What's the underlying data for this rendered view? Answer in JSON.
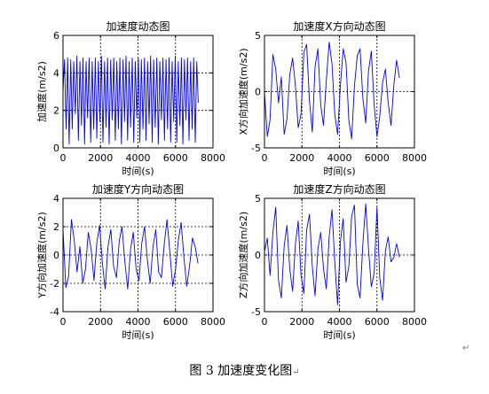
{
  "caption": "图 3  加速度变化图",
  "caption_mark": "↵",
  "paragraph_mark": "↵",
  "colors": {
    "line": "#0000ff",
    "axes": "#000000",
    "grid": "#000000",
    "background": "#ffffff"
  },
  "chart_data": [
    {
      "type": "line",
      "title": "加速度动态图",
      "xlabel": "时间(s)",
      "ylabel": "加速度(m/s2)",
      "xlim": [
        0,
        8000
      ],
      "ylim": [
        0,
        6
      ],
      "xticks": [
        0,
        2000,
        4000,
        6000,
        8000
      ],
      "yticks": [
        0,
        2,
        4,
        6
      ],
      "grid": true,
      "series": [
        {
          "x": [
            0,
            82,
            164,
            246,
            328,
            410,
            492,
            574,
            656,
            738,
            820,
            902,
            984,
            1066,
            1148,
            1230,
            1312,
            1394,
            1476,
            1558,
            1640,
            1722,
            1804,
            1886,
            1968,
            2050,
            2132,
            2214,
            2296,
            2378,
            2460,
            2542,
            2624,
            2706,
            2788,
            2870,
            2952,
            3034,
            3116,
            3198,
            3280,
            3362,
            3444,
            3526,
            3608,
            3690,
            3772,
            3854,
            3936,
            4018,
            4100,
            4182,
            4264,
            4346,
            4428,
            4510,
            4592,
            4674,
            4756,
            4838,
            4920,
            5002,
            5084,
            5166,
            5248,
            5330,
            5412,
            5494,
            5576,
            5658,
            5740,
            5822,
            5904,
            5986,
            6068,
            6150,
            6232,
            6314,
            6396,
            6478,
            6560,
            6642,
            6724,
            6806,
            6888,
            6970,
            7052,
            7134,
            7216
          ],
          "y": [
            3.0,
            4.7,
            1.0,
            4.8,
            0.2,
            4.7,
            1.0,
            4.6,
            1.8,
            4.9,
            0.4,
            4.6,
            1.2,
            4.8,
            0.2,
            4.6,
            1.6,
            4.8,
            0.3,
            4.6,
            1.0,
            4.8,
            0.5,
            4.6,
            1.4,
            4.9,
            0.3,
            4.6,
            1.1,
            4.8,
            0.2,
            4.7,
            1.5,
            4.8,
            0.4,
            4.6,
            1.0,
            4.8,
            0.2,
            4.7,
            1.4,
            4.9,
            0.4,
            4.6,
            1.1,
            4.8,
            0.3,
            4.6,
            1.6,
            4.8,
            0.3,
            4.7,
            1.0,
            4.8,
            0.4,
            4.6,
            1.3,
            4.9,
            0.3,
            4.7,
            1.1,
            4.8,
            0.2,
            4.6,
            1.5,
            4.8,
            0.4,
            4.7,
            1.0,
            4.8,
            0.3,
            4.6,
            1.4,
            4.9,
            0.3,
            4.6,
            1.2,
            4.8,
            0.2,
            4.7,
            1.5,
            4.8,
            0.4,
            4.6,
            1.0,
            4.8,
            0.3,
            4.6,
            2.4
          ]
        }
      ]
    },
    {
      "type": "line",
      "title": "加速度X方向动态图",
      "xlabel": "时间(s)",
      "ylabel": "X方向加速度(m/s2)",
      "xlim": [
        0,
        8000
      ],
      "ylim": [
        -5,
        5
      ],
      "xticks": [
        0,
        2000,
        4000,
        6000,
        8000
      ],
      "yticks": [
        -5,
        0,
        5
      ],
      "grid": true,
      "series": [
        {
          "x": [
            0,
            150,
            300,
            450,
            600,
            750,
            900,
            1050,
            1200,
            1350,
            1500,
            1650,
            1800,
            1950,
            2100,
            2250,
            2400,
            2550,
            2700,
            2850,
            3000,
            3150,
            3300,
            3450,
            3600,
            3750,
            3900,
            4050,
            4200,
            4350,
            4500,
            4650,
            4800,
            4950,
            5100,
            5250,
            5400,
            5550,
            5700,
            5850,
            6000,
            6150,
            6300,
            6450,
            6600,
            6750,
            6900,
            7050,
            7200
          ],
          "y": [
            0,
            -4.0,
            -2.5,
            3.3,
            2.0,
            -1.0,
            1.3,
            -3.8,
            -2.4,
            1.5,
            3.0,
            0.5,
            -3.2,
            -2.0,
            3.5,
            4.2,
            -0.8,
            -3.6,
            2.2,
            3.8,
            -1.2,
            -3.0,
            1.0,
            4.4,
            2.5,
            -2.0,
            -3.8,
            0.6,
            3.8,
            2.6,
            -2.6,
            -4.2,
            0.5,
            3.2,
            3.8,
            -0.6,
            -2.8,
            1.8,
            3.6,
            -1.2,
            -4.0,
            -2.2,
            0.8,
            2.0,
            -1.0,
            -3.0,
            0.6,
            2.8,
            1.2
          ]
        }
      ]
    },
    {
      "type": "line",
      "title": "加速度Y方向动态图",
      "xlabel": "时间(s)",
      "ylabel": "Y方向加速度(m/s2)",
      "xlim": [
        0,
        8000
      ],
      "ylim": [
        -4,
        4
      ],
      "xticks": [
        0,
        2000,
        4000,
        6000,
        8000
      ],
      "yticks": [
        -4,
        -2,
        0,
        2,
        4
      ],
      "grid": true,
      "series": [
        {
          "x": [
            0,
            150,
            300,
            450,
            600,
            750,
            900,
            1050,
            1200,
            1350,
            1500,
            1650,
            1800,
            1950,
            2100,
            2250,
            2400,
            2550,
            2700,
            2850,
            3000,
            3150,
            3300,
            3450,
            3600,
            3750,
            3900,
            4050,
            4200,
            4350,
            4500,
            4650,
            4800,
            4950,
            5100,
            5250,
            5400,
            5550,
            5700,
            5850,
            6000,
            6150,
            6300,
            6450,
            6600,
            6750,
            6900,
            7050,
            7200
          ],
          "y": [
            1.8,
            -2.3,
            -1.5,
            2.5,
            1.0,
            -1.2,
            0.6,
            -2.0,
            -1.0,
            1.6,
            0.4,
            -1.8,
            0.8,
            2.1,
            -0.6,
            -2.4,
            0.6,
            1.8,
            -0.8,
            -1.6,
            1.0,
            2.0,
            -0.5,
            -2.4,
            0.4,
            1.6,
            -1.0,
            -1.8,
            0.8,
            2.0,
            -0.4,
            -2.0,
            0.6,
            1.8,
            -1.2,
            -1.6,
            0.8,
            2.5,
            0.2,
            -2.2,
            -1.0,
            1.0,
            2.3,
            -0.2,
            -2.2,
            -0.8,
            1.2,
            0.6,
            -0.6
          ]
        }
      ]
    },
    {
      "type": "line",
      "title": "加速度Z方向动态图",
      "xlabel": "时间(s)",
      "ylabel": "Z方向加速度(m/s2)",
      "xlim": [
        0,
        8000
      ],
      "ylim": [
        -5,
        5
      ],
      "xticks": [
        0,
        2000,
        4000,
        6000,
        8000
      ],
      "yticks": [
        -5,
        0,
        5
      ],
      "grid": true,
      "series": [
        {
          "x": [
            0,
            150,
            300,
            450,
            600,
            750,
            900,
            1050,
            1200,
            1350,
            1500,
            1650,
            1800,
            1950,
            2100,
            2250,
            2400,
            2550,
            2700,
            2850,
            3000,
            3150,
            3300,
            3450,
            3600,
            3750,
            3900,
            4050,
            4200,
            4350,
            4500,
            4650,
            4800,
            4950,
            5100,
            5250,
            5400,
            5550,
            5700,
            5850,
            6000,
            6150,
            6300,
            6450,
            6600,
            6750,
            6900,
            7050,
            7200
          ],
          "y": [
            0.3,
            1.5,
            -1.8,
            2.0,
            4.2,
            -2.2,
            -3.8,
            0.8,
            2.6,
            -1.2,
            -3.2,
            1.0,
            3.0,
            -1.8,
            -3.4,
            2.2,
            3.6,
            -1.0,
            -3.6,
            0.5,
            2.0,
            -1.2,
            -3.0,
            1.6,
            4.0,
            -0.6,
            -4.4,
            1.2,
            3.2,
            -2.4,
            -1.0,
            3.4,
            4.4,
            -2.6,
            -3.8,
            1.0,
            4.5,
            0.6,
            -2.8,
            -1.6,
            4.2,
            -2.0,
            -4.0,
            0.4,
            1.6,
            -0.6,
            -0.2,
            1.0,
            -0.2
          ]
        }
      ]
    }
  ]
}
